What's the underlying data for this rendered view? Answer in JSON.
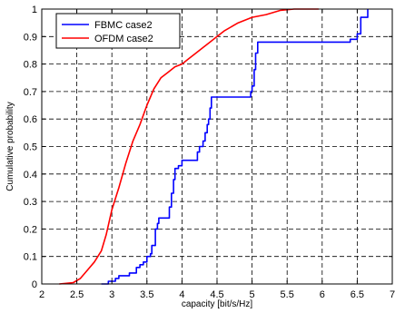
{
  "chart_data": {
    "type": "line",
    "title": "",
    "xlabel": "capacity [bit/s/Hz]",
    "ylabel": "Cumulative probability",
    "xlim": [
      2,
      7
    ],
    "ylim": [
      0,
      1
    ],
    "xticks": [
      "2",
      "2.5",
      "3",
      "3.5",
      "4",
      "4.5",
      "5",
      "5.5",
      "6",
      "6.5",
      "7"
    ],
    "yticks": [
      "0",
      "0.1",
      "0.2",
      "0.3",
      "0.4",
      "0.5",
      "0.6",
      "0.7",
      "0.8",
      "0.9",
      "1"
    ],
    "grid": true,
    "legend": {
      "placement": "top-left"
    },
    "series": [
      {
        "name": "FBMC case2",
        "color": "#0000ff",
        "step": true,
        "points": [
          [
            2.85,
            0.0
          ],
          [
            2.95,
            0.01
          ],
          [
            3.0,
            0.01
          ],
          [
            3.05,
            0.02
          ],
          [
            3.1,
            0.03
          ],
          [
            3.2,
            0.03
          ],
          [
            3.25,
            0.04
          ],
          [
            3.3,
            0.04
          ],
          [
            3.35,
            0.06
          ],
          [
            3.4,
            0.07
          ],
          [
            3.45,
            0.08
          ],
          [
            3.5,
            0.1
          ],
          [
            3.55,
            0.11
          ],
          [
            3.57,
            0.14
          ],
          [
            3.6,
            0.14
          ],
          [
            3.62,
            0.2
          ],
          [
            3.65,
            0.22
          ],
          [
            3.67,
            0.24
          ],
          [
            3.8,
            0.24
          ],
          [
            3.82,
            0.28
          ],
          [
            3.85,
            0.33
          ],
          [
            3.88,
            0.38
          ],
          [
            3.9,
            0.42
          ],
          [
            3.95,
            0.43
          ],
          [
            4.0,
            0.45
          ],
          [
            4.2,
            0.45
          ],
          [
            4.22,
            0.48
          ],
          [
            4.25,
            0.5
          ],
          [
            4.3,
            0.52
          ],
          [
            4.33,
            0.55
          ],
          [
            4.36,
            0.58
          ],
          [
            4.38,
            0.6
          ],
          [
            4.4,
            0.64
          ],
          [
            4.42,
            0.68
          ],
          [
            4.95,
            0.68
          ],
          [
            4.98,
            0.7
          ],
          [
            5.0,
            0.72
          ],
          [
            5.03,
            0.78
          ],
          [
            5.05,
            0.84
          ],
          [
            5.08,
            0.88
          ],
          [
            6.0,
            0.88
          ],
          [
            6.3,
            0.88
          ],
          [
            6.4,
            0.89
          ],
          [
            6.5,
            0.91
          ],
          [
            6.55,
            0.97
          ],
          [
            6.6,
            0.97
          ],
          [
            6.65,
            1.0
          ]
        ]
      },
      {
        "name": "OFDM case2",
        "color": "#ff0000",
        "step": false,
        "points": [
          [
            2.25,
            0.0
          ],
          [
            2.45,
            0.005
          ],
          [
            2.55,
            0.02
          ],
          [
            2.65,
            0.05
          ],
          [
            2.75,
            0.08
          ],
          [
            2.85,
            0.12
          ],
          [
            2.92,
            0.18
          ],
          [
            3.0,
            0.27
          ],
          [
            3.1,
            0.35
          ],
          [
            3.2,
            0.44
          ],
          [
            3.3,
            0.52
          ],
          [
            3.4,
            0.58
          ],
          [
            3.5,
            0.65
          ],
          [
            3.6,
            0.71
          ],
          [
            3.7,
            0.75
          ],
          [
            3.8,
            0.77
          ],
          [
            3.9,
            0.79
          ],
          [
            4.0,
            0.8
          ],
          [
            4.1,
            0.82
          ],
          [
            4.2,
            0.84
          ],
          [
            4.3,
            0.86
          ],
          [
            4.4,
            0.88
          ],
          [
            4.5,
            0.9
          ],
          [
            4.6,
            0.92
          ],
          [
            4.8,
            0.95
          ],
          [
            5.0,
            0.97
          ],
          [
            5.2,
            0.98
          ],
          [
            5.4,
            0.995
          ],
          [
            5.6,
            1.0
          ],
          [
            5.95,
            1.0
          ]
        ]
      }
    ]
  }
}
